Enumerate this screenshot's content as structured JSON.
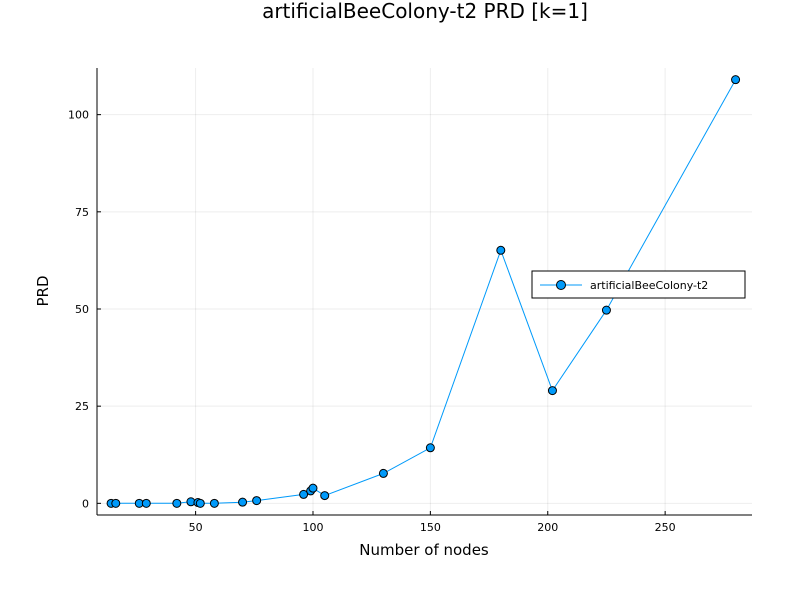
{
  "chart_data": {
    "type": "line",
    "title": "artificialBeeColony-t2 PRD [k=1]",
    "xlabel": "Number of nodes",
    "ylabel": "PRD",
    "xlim": [
      8,
      287
    ],
    "ylim": [
      -3,
      112
    ],
    "xticks": [
      50,
      100,
      150,
      200,
      250
    ],
    "yticks": [
      0,
      25,
      50,
      75,
      100
    ],
    "grid": true,
    "legend_position": "right",
    "series": [
      {
        "name": "artificialBeeColony-t2",
        "color": "#009AFA",
        "marker": "circle",
        "points": [
          {
            "x": 14,
            "y": 0
          },
          {
            "x": 16,
            "y": 0
          },
          {
            "x": 26,
            "y": 0
          },
          {
            "x": 29,
            "y": 0
          },
          {
            "x": 42,
            "y": 0
          },
          {
            "x": 48,
            "y": 0.4
          },
          {
            "x": 51,
            "y": 0.2
          },
          {
            "x": 52,
            "y": 0
          },
          {
            "x": 58,
            "y": 0
          },
          {
            "x": 70,
            "y": 0.3
          },
          {
            "x": 76,
            "y": 0.7
          },
          {
            "x": 96,
            "y": 2.3
          },
          {
            "x": 99,
            "y": 3.2
          },
          {
            "x": 100,
            "y": 3.9
          },
          {
            "x": 105,
            "y": 2.0
          },
          {
            "x": 130,
            "y": 7.7
          },
          {
            "x": 150,
            "y": 14.3
          },
          {
            "x": 180,
            "y": 65.1
          },
          {
            "x": 202,
            "y": 29.0
          },
          {
            "x": 225,
            "y": 49.7
          },
          {
            "x": 280,
            "y": 109.0
          }
        ]
      }
    ]
  }
}
